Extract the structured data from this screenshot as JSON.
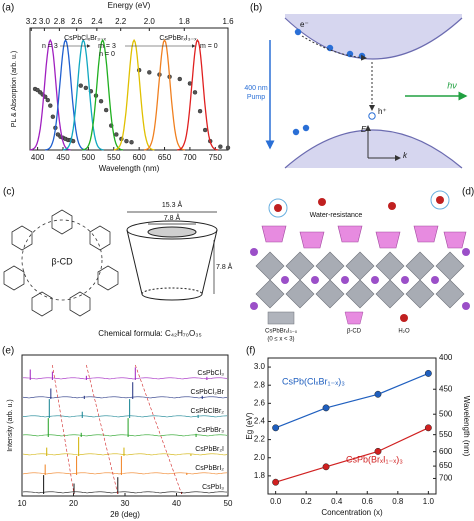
{
  "chart_data": [
    {
      "type": "spectra",
      "label": "(a)",
      "xlabel": "Wavelength (nm)",
      "ylabel": "PL & Absorption (arb. u.)",
      "x2label": "Energy (eV)",
      "xlim": [
        385,
        775
      ],
      "xticks": [
        400,
        450,
        500,
        550,
        600,
        650,
        700,
        750
      ],
      "x2ticks": [
        {
          "value": 3.2,
          "label": "3.2"
        },
        {
          "value": 3.0,
          "label": "3.0"
        },
        {
          "value": 2.8,
          "label": "2.8"
        },
        {
          "value": 2.6,
          "label": "2.6"
        },
        {
          "value": 2.4,
          "label": "2.4"
        },
        {
          "value": 2.2,
          "label": "2.2"
        },
        {
          "value": 2.0,
          "label": "2.0"
        },
        {
          "value": 1.8,
          "label": "1.8"
        },
        {
          "value": 1.6,
          "label": "1.6"
        }
      ],
      "ylim": [
        0,
        1.1
      ],
      "pl_peaks": {
        "x": [
          425,
          455,
          490,
          528,
          590,
          650,
          715
        ],
        "colors": [
          "#a020c0",
          "#2060d0",
          "#10a8c0",
          "#20b020",
          "#e0c000",
          "#f08020",
          "#e02020"
        ]
      },
      "absorption": [
        {
          "x": [
            395,
            400,
            405,
            410,
            415,
            420,
            425,
            430,
            435,
            440,
            445,
            450,
            455,
            460,
            465,
            470
          ],
          "values": [
            0.55,
            0.54,
            0.52,
            0.5,
            0.48,
            0.45,
            0.4,
            0.3,
            0.2,
            0.14,
            0.12,
            0.11,
            0.1,
            0.09,
            0.09,
            0.08
          ]
        },
        {
          "x": [
            485,
            495,
            505,
            515,
            525,
            535,
            545,
            555,
            565,
            575,
            585
          ],
          "values": [
            0.58,
            0.56,
            0.53,
            0.49,
            0.44,
            0.36,
            0.22,
            0.14,
            0.1,
            0.08,
            0.07
          ]
        },
        {
          "x": [
            600,
            620,
            640,
            660,
            680,
            700,
            710,
            720,
            730,
            740,
            760,
            775
          ],
          "values": [
            0.72,
            0.7,
            0.68,
            0.66,
            0.64,
            0.6,
            0.52,
            0.35,
            0.18,
            0.08,
            0.03,
            0.02
          ]
        }
      ],
      "annotations": [
        "CsPbClₓBr₃₋ₓ",
        "CsPbBrₓI₃₋ₓ",
        "n = 3",
        "m = 3",
        "n = 0",
        "m = 0"
      ]
    },
    {
      "type": "xrd",
      "label": "(e)",
      "xlabel": "2θ (deg)",
      "ylabel": "Intensity (arb. u.)",
      "xlim": [
        10,
        50
      ],
      "xticks": [
        10,
        20,
        30,
        40,
        50
      ],
      "series": [
        {
          "name": "CsPbCl₃",
          "color": "#a020c0",
          "peaks": [
            11.6,
            15.9,
            22.5,
            32.0,
            45.9
          ],
          "heights": [
            0.5,
            0.4,
            0.2,
            0.6,
            0.15
          ]
        },
        {
          "name": "CsPbCl₂Br",
          "color": "#203080",
          "peaks": [
            15.6,
            22.1,
            31.5,
            45.0
          ],
          "heights": [
            0.5,
            0.15,
            0.8,
            0.15
          ]
        },
        {
          "name": "CsPbClBr₂",
          "color": "#108090",
          "peaks": [
            15.3,
            21.7,
            30.9,
            44.2
          ],
          "heights": [
            0.9,
            0.3,
            0.9,
            0.15
          ]
        },
        {
          "name": "CsPbBr₃",
          "color": "#20a020",
          "peaks": [
            15.1,
            21.5,
            30.6,
            43.8
          ],
          "heights": [
            0.9,
            0.2,
            0.9,
            0.15
          ]
        },
        {
          "name": "CsPbBr₂I",
          "color": "#d0b000",
          "peaks": [
            14.8,
            21.0,
            29.8,
            42.8
          ],
          "heights": [
            0.4,
            0.9,
            0.4,
            0.1
          ]
        },
        {
          "name": "CsPbBrI₂",
          "color": "#f08020",
          "peaks": [
            14.5,
            20.6,
            29.3,
            42.0
          ],
          "heights": [
            0.5,
            0.9,
            0.9,
            0.1
          ]
        },
        {
          "name": "CsPbI₃",
          "color": "#111111",
          "peaks": [
            14.2,
            20.1,
            28.6,
            41.0
          ],
          "heights": [
            0.9,
            0.5,
            0.8,
            0.1
          ]
        }
      ]
    },
    {
      "type": "line",
      "label": "(f)",
      "xlabel": "Concentration (x)",
      "ylabel": "Eg (eV)",
      "y2label": "Wavelength (nm)",
      "xlim": [
        -0.05,
        1.05
      ],
      "xticks": [
        {
          "value": 0,
          "label": "0.0"
        },
        0.2,
        0.4,
        0.6,
        0.8,
        {
          "value": 1,
          "label": "1.0"
        }
      ],
      "ylim": [
        1.6,
        3.1
      ],
      "yticks": [
        1.8,
        {
          "value": 2,
          "label": "2.0"
        },
        2.2,
        2.4,
        2.6,
        2.8,
        {
          "value": 3,
          "label": "3.0"
        }
      ],
      "y2ticks": [
        400,
        450,
        500,
        550,
        600,
        650,
        700
      ],
      "series": [
        {
          "name": "CsPb(ClₓBr₁₋ₓ)₃",
          "color": "#1f5fbf",
          "x": [
            0,
            0.33,
            0.67,
            1
          ],
          "values": [
            2.33,
            2.55,
            2.7,
            2.93
          ]
        },
        {
          "name": "CsPb(BrₓI₁₋ₓ)₃",
          "color": "#d02020",
          "x": [
            0,
            0.33,
            0.67,
            1
          ],
          "values": [
            1.73,
            1.9,
            2.07,
            2.33
          ]
        }
      ]
    }
  ],
  "panel_b": {
    "label": "(b)",
    "electron": "e⁻",
    "hole": "h⁺",
    "pump": [
      "400 nm",
      "Pump"
    ],
    "emission": "hν",
    "energy_axis": "E",
    "momentum_axis": "k"
  },
  "panel_c": {
    "label": "(c)",
    "molecule": "β-CD",
    "top_diameter": "15.3 Å",
    "inner_diameter": "7.8 Å",
    "height": "7.8 Å",
    "formula": "Chemical formula: C₄₂H₇₀O₃₅"
  },
  "panel_d": {
    "label": "(d)",
    "water_resistance": "Water-resistance",
    "legend": [
      "CsPbBrₓI₃₋ₓ",
      "(0 ≤ x < 3)",
      "β-CD",
      "H₂O"
    ]
  }
}
